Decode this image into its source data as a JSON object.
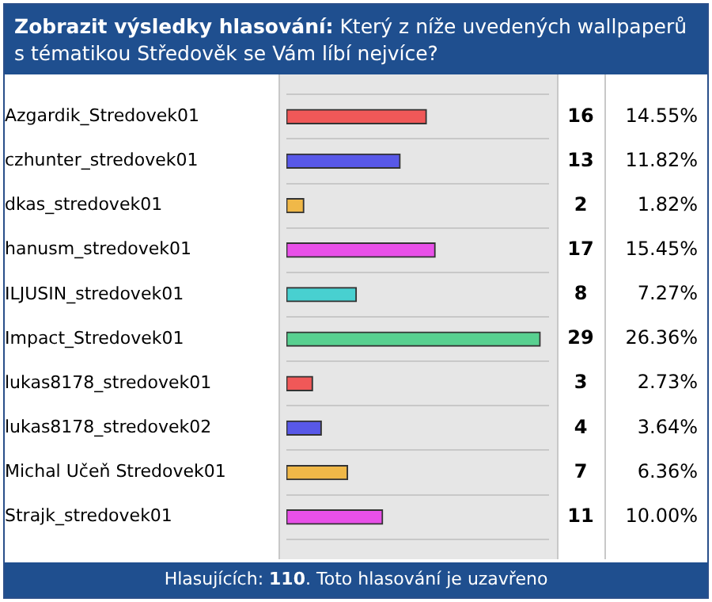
{
  "chart_data": {
    "type": "bar",
    "orientation": "horizontal",
    "title": "Zobrazit výsledky hlasování: Který z níže uvedených wallpaperů s tématikou Středověk se Vám líbí nejvíce?",
    "categories": [
      "Azgardik_Stredovek01",
      "czhunter_stredovek01",
      "dkas_stredovek01",
      "hanusm_stredovek01",
      "ILJUSIN_stredovek01",
      "Impact_Stredovek01",
      "lukas8178_stredovek01",
      "lukas8178_stredovek02",
      "Michal Učeň Stredovek01",
      "Strajk_stredovek01"
    ],
    "values": [
      16,
      13,
      2,
      17,
      8,
      29,
      3,
      4,
      7,
      11
    ],
    "colors": [
      "#f05858",
      "#5858e8",
      "#f0b848",
      "#e850e8",
      "#48d0d0",
      "#58d090",
      "#f05858",
      "#5858e8",
      "#f0b848",
      "#e850e8"
    ],
    "data_labels": true,
    "tick_labels": "y",
    "grid": "y",
    "legend": false,
    "annotations": [
      "14.55%",
      "11.82%",
      "1.82%",
      "15.45%",
      "7.27%",
      "26.36%",
      "2.73%",
      "3.64%",
      "6.36%",
      "10.00%",
      "Hlasujících: 110. Toto hlasování je uzavřeno"
    ]
  }
}
